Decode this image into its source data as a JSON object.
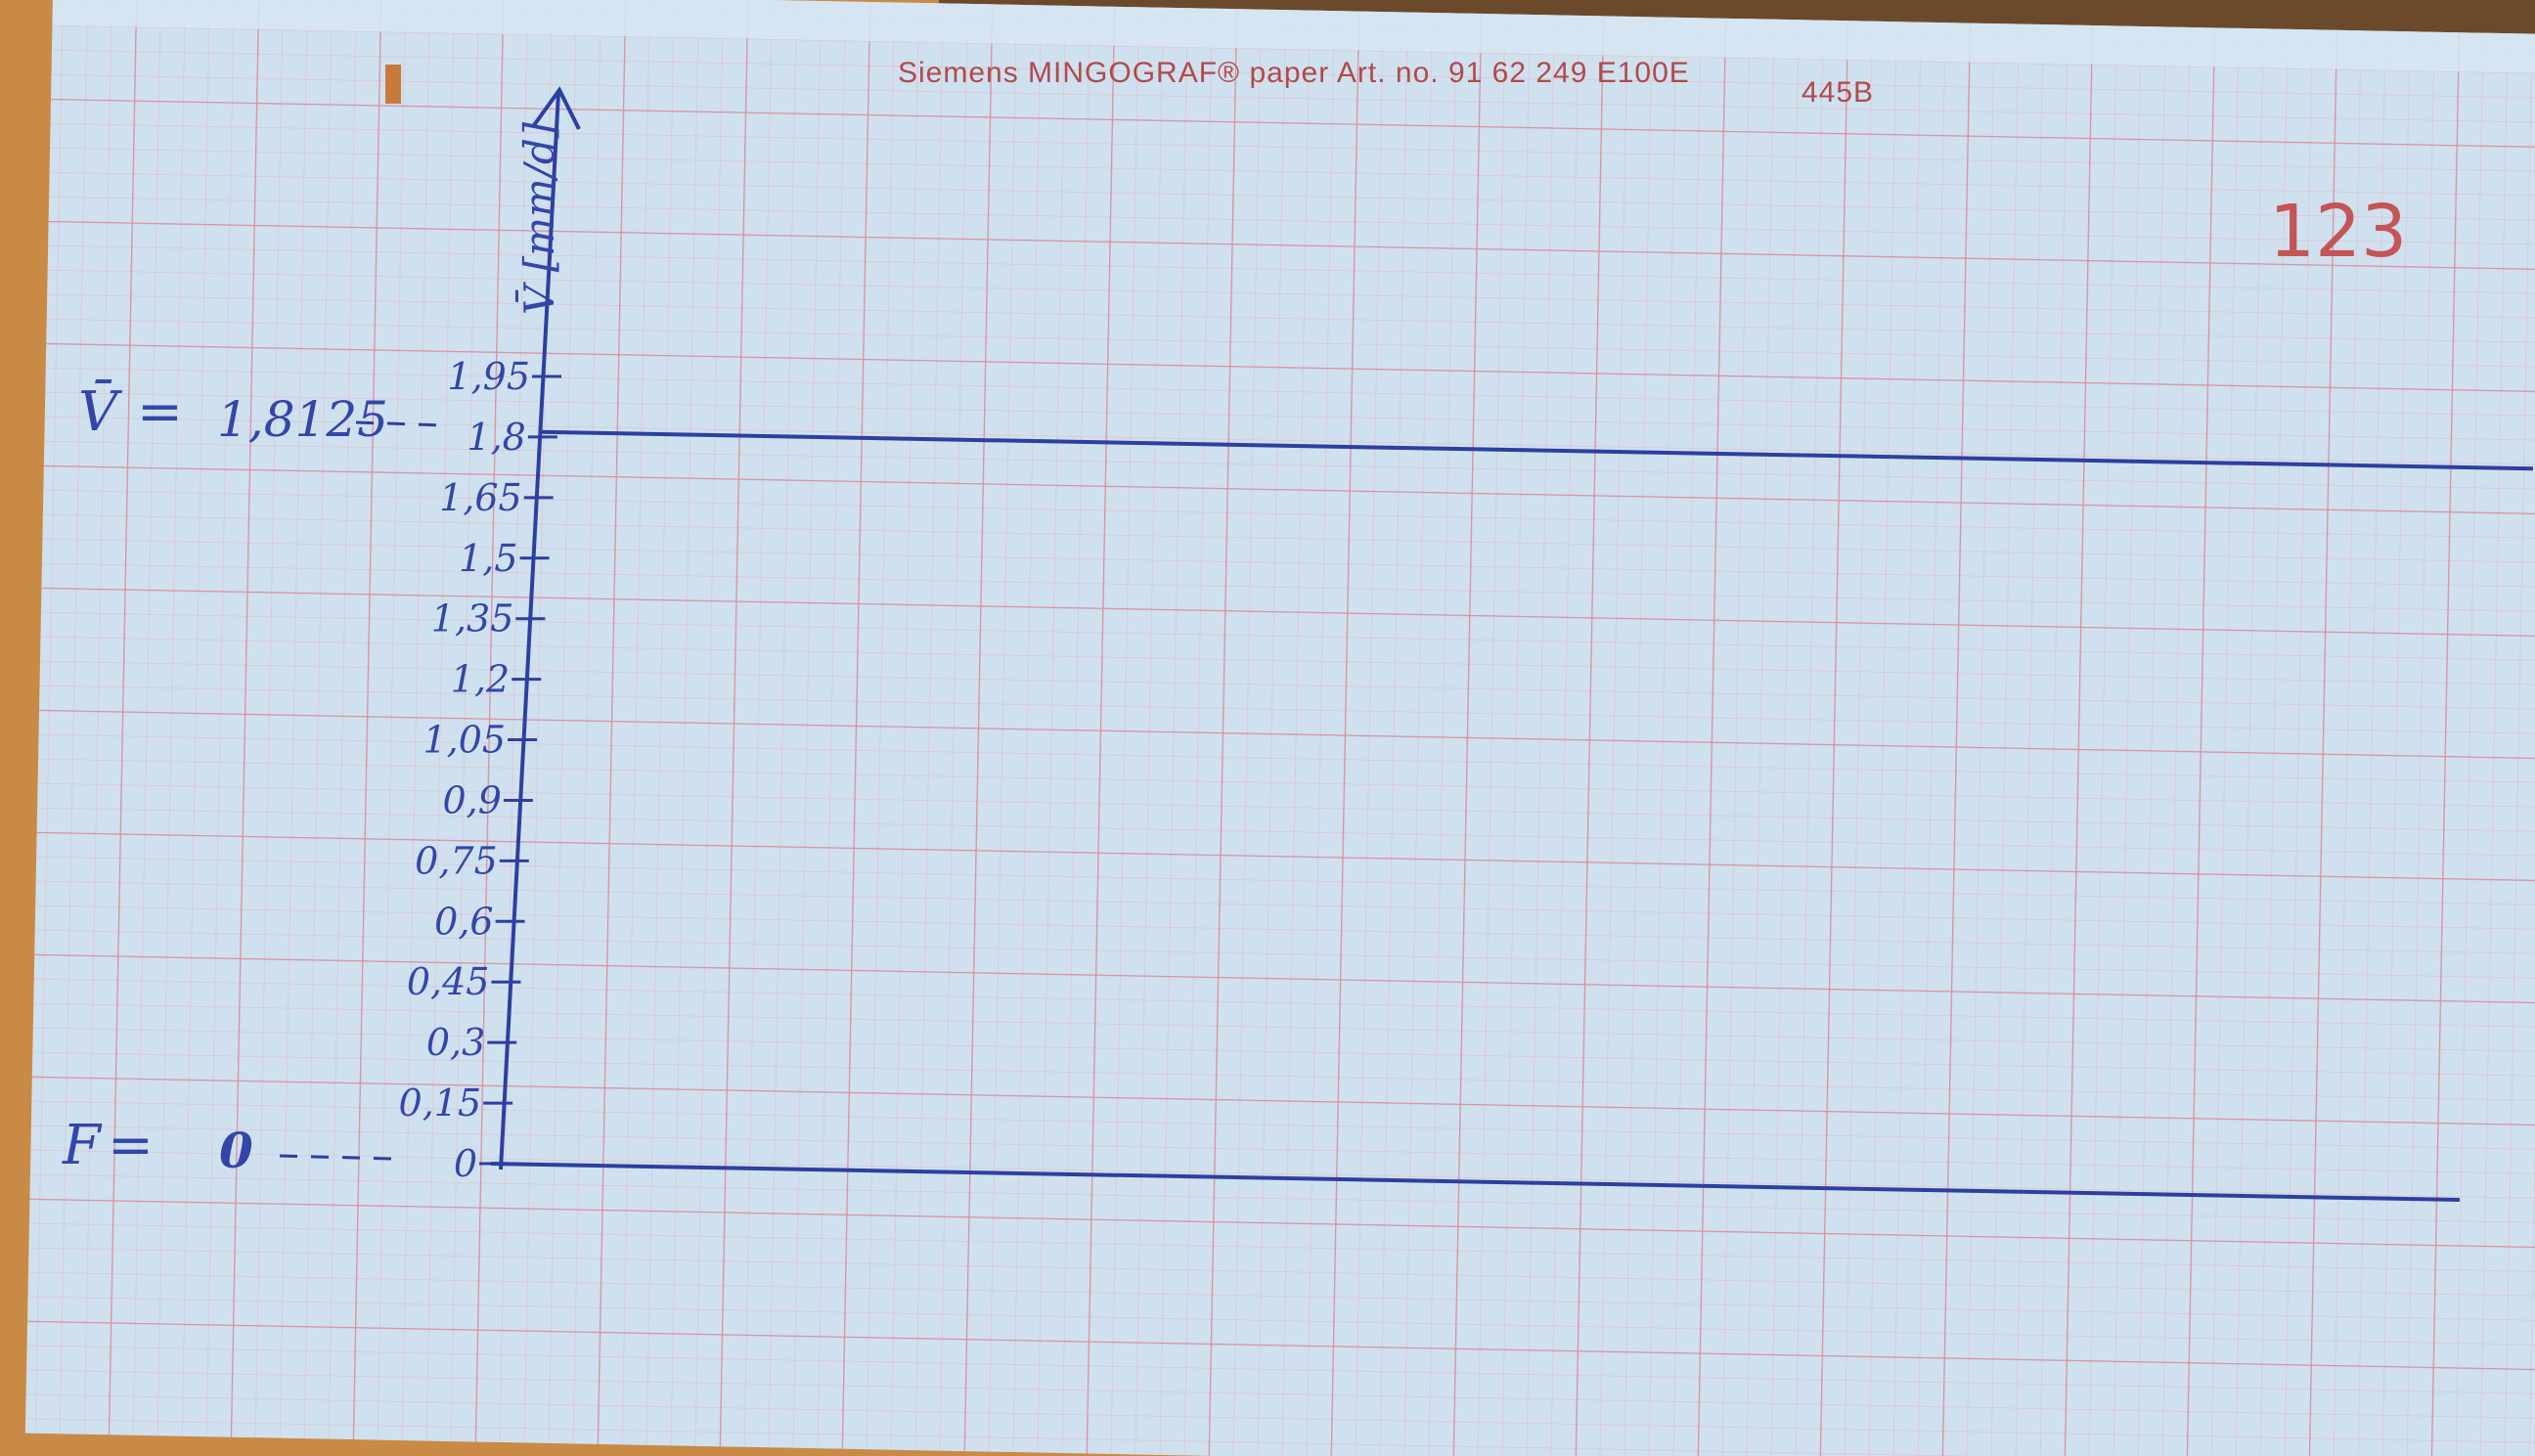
{
  "header": {
    "brand_line": "Siemens MINGOGRAF® paper Art. no. 91 62 249 E100E",
    "code": "445B"
  },
  "page_number": "123",
  "colors": {
    "paper": "#cfe1ef",
    "grid_fine": "#e0b4c0",
    "grid_major": "#d5909f",
    "ink": "#2d3fa0",
    "print_red": "#b04a4a",
    "desk": "#c98a45"
  },
  "annotations": {
    "v_bar_symbol": "V̄",
    "v_bar_equals": "=",
    "v_bar_value": "1,8125",
    "f_symbol": "F",
    "f_equals": "=",
    "f_value": "0"
  },
  "chart_data": {
    "type": "line",
    "ylabel": "V̄ [mm/d]",
    "xlabel": "",
    "yticks": [
      "0",
      "0,15",
      "0,3",
      "0,45",
      "0,6",
      "0,75",
      "0,9",
      "1,05",
      "1,2",
      "1,35",
      "1,5",
      "1,65",
      "1,8",
      "1,95"
    ],
    "ytick_values": [
      0,
      0.15,
      0.3,
      0.45,
      0.6,
      0.75,
      0.9,
      1.05,
      1.2,
      1.35,
      1.5,
      1.65,
      1.8,
      1.95
    ],
    "ylim": [
      0,
      2.25
    ],
    "series": [
      {
        "values": [
          1.8125,
          1.8125
        ]
      },
      {
        "values": [
          0,
          0
        ]
      }
    ]
  }
}
